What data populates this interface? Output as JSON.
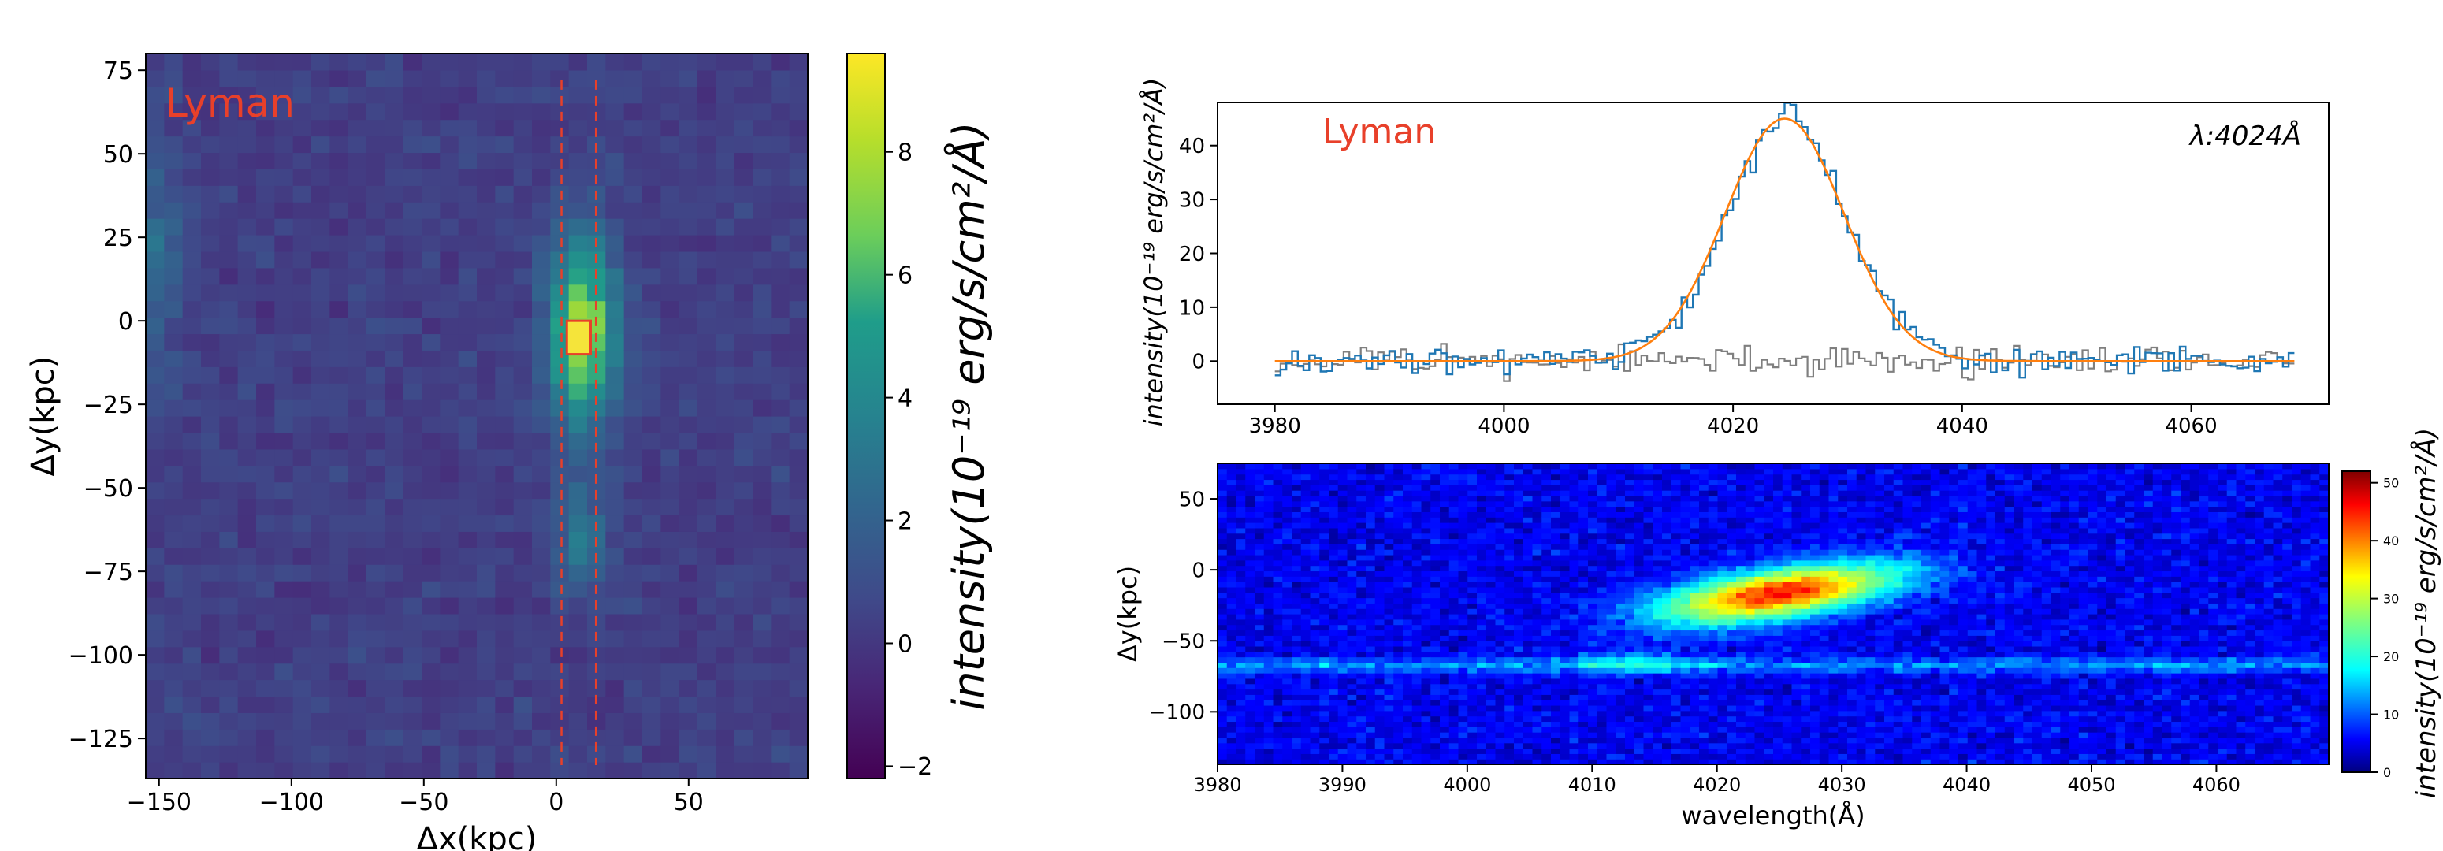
{
  "chart_data": [
    {
      "type": "heatmap",
      "panel": "spatial-map",
      "label": "Lyman",
      "xlabel": "Δx(kpc)",
      "ylabel": "Δy(kpc)",
      "xlim": [
        -155,
        95
      ],
      "ylim": [
        -137,
        80
      ],
      "xticks": [
        "−150",
        "−100",
        "−50",
        "0",
        "50"
      ],
      "yticks": [
        "75",
        "50",
        "25",
        "0",
        "−25",
        "−50",
        "−75",
        "−100",
        "−125"
      ],
      "xtick_values": [
        -150,
        -100,
        -50,
        0,
        50
      ],
      "ytick_values": [
        75,
        50,
        25,
        0,
        -25,
        -50,
        -75,
        -100,
        -125
      ],
      "colormap": "viridis",
      "colorbar": {
        "label": "intensity(10⁻¹⁹ erg/s/cm²/Å)",
        "range": [
          -2.2,
          9.6
        ],
        "ticks": [
          "−2",
          "0",
          "2",
          "4",
          "6",
          "8"
        ],
        "tick_values": [
          -2,
          0,
          2,
          4,
          6,
          8
        ]
      },
      "peak": {
        "x": 9,
        "y": -5,
        "value": 9.5
      },
      "slit_x": [
        2,
        15
      ],
      "aperture": {
        "x": [
          4,
          13
        ],
        "y": [
          -10,
          0
        ]
      }
    },
    {
      "type": "line",
      "panel": "spectrum",
      "label": "Lyman",
      "annotation": "λ:4024Å",
      "ylabel": "intensity(10⁻¹⁹ erg/s/cm²/Å)",
      "xlim": [
        3975,
        4072
      ],
      "ylim": [
        -8,
        48
      ],
      "xticks": [
        "3980",
        "4000",
        "4020",
        "4040",
        "4060"
      ],
      "yticks": [
        "0",
        "10",
        "20",
        "30",
        "40"
      ],
      "xtick_values": [
        3980,
        4000,
        4020,
        4040,
        4060
      ],
      "ytick_values": [
        0,
        10,
        20,
        30,
        40
      ],
      "series": [
        {
          "color": "#1f77b4",
          "style": "step",
          "x_range": [
            3980,
            4069
          ],
          "peak_value": 44,
          "peak_center": 4024.5
        },
        {
          "color": "#ff7f0e",
          "style": "gaussian",
          "amplitude": 45,
          "center": 4024.5,
          "sigma": 5.2
        },
        {
          "color": "#7f7f7f",
          "style": "step",
          "x_range": [
            3980,
            4069
          ],
          "peak_value": 0
        }
      ]
    },
    {
      "type": "heatmap",
      "panel": "2d-spectrum",
      "xlabel": "wavelength(Å)",
      "ylabel": "Δy(kpc)",
      "xlim": [
        3980,
        4069
      ],
      "ylim": [
        -137,
        75
      ],
      "xticks": [
        "3980",
        "3990",
        "4000",
        "4010",
        "4020",
        "4030",
        "4040",
        "4050",
        "4060"
      ],
      "yticks": [
        "50",
        "0",
        "−50",
        "−100"
      ],
      "xtick_values": [
        3980,
        3990,
        4000,
        4010,
        4020,
        4030,
        4040,
        4050,
        4060
      ],
      "ytick_values": [
        50,
        0,
        -50,
        -100
      ],
      "colormap": "jet",
      "colorbar": {
        "label": "intensity(10⁻¹⁹ erg/s/cm²/Å)",
        "range": [
          0,
          52
        ],
        "ticks": [
          "0",
          "10",
          "20",
          "30",
          "40",
          "50"
        ],
        "tick_values": [
          0,
          10,
          20,
          30,
          40,
          50
        ]
      },
      "continuum_y": -67
    }
  ]
}
